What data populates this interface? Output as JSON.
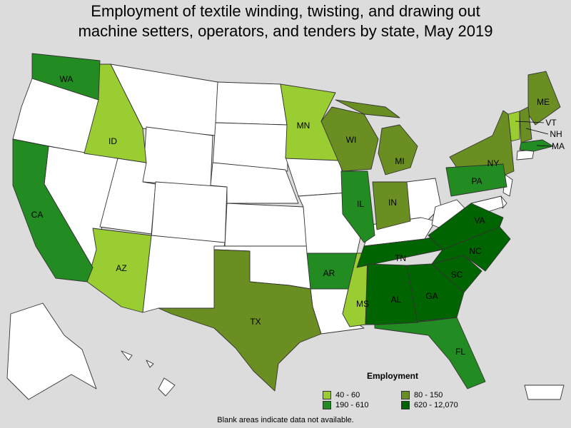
{
  "title": {
    "line1": "Employment of textile winding, twisting, and drawing out",
    "line2": "machine setters, operators, and tenders by state, May 2019"
  },
  "legend": {
    "title": "Employment",
    "items": [
      {
        "label": "40 - 60",
        "color": "#9acd32"
      },
      {
        "label": "80 - 150",
        "color": "#6b8e23"
      },
      {
        "label": "190 - 610",
        "color": "#228b22"
      },
      {
        "label": "620 - 12,070",
        "color": "#006400"
      }
    ]
  },
  "footnote": "Blank areas indicate data not available.",
  "colors": {
    "no_data": "#ffffff",
    "background": "#dcdcdc",
    "tier_1": "#9acd32",
    "tier_2": "#6b8e23",
    "tier_3": "#228b22",
    "tier_4": "#006400"
  },
  "states": {
    "WA": {
      "label": "WA",
      "range": "190 - 610"
    },
    "OR": {
      "label": "",
      "range": "no data"
    },
    "CA": {
      "label": "CA",
      "range": "190 - 610"
    },
    "ID": {
      "label": "ID",
      "range": "40 - 60"
    },
    "NV": {
      "label": "",
      "range": "no data"
    },
    "AZ": {
      "label": "AZ",
      "range": "40 - 60"
    },
    "MN": {
      "label": "MN",
      "range": "40 - 60"
    },
    "WI": {
      "label": "WI",
      "range": "80 - 150"
    },
    "MI": {
      "label": "MI",
      "range": "80 - 150"
    },
    "IL": {
      "label": "IL",
      "range": "190 - 610"
    },
    "IN": {
      "label": "IN",
      "range": "80 - 150"
    },
    "TX": {
      "label": "TX",
      "range": "80 - 150"
    },
    "AR": {
      "label": "AR",
      "range": "190 - 610"
    },
    "MS": {
      "label": "MS",
      "range": "40 - 60"
    },
    "AL": {
      "label": "AL",
      "range": "620 - 12,070"
    },
    "TN": {
      "label": "TN",
      "range": "620 - 12,070"
    },
    "GA": {
      "label": "GA",
      "range": "620 - 12,070"
    },
    "FL": {
      "label": "FL",
      "range": "190 - 610"
    },
    "SC": {
      "label": "SC",
      "range": "620 - 12,070"
    },
    "NC": {
      "label": "NC",
      "range": "620 - 12,070"
    },
    "VA": {
      "label": "VA",
      "range": "620 - 12,070"
    },
    "PA": {
      "label": "PA",
      "range": "190 - 610"
    },
    "NY": {
      "label": "NY",
      "range": "80 - 150"
    },
    "ME": {
      "label": "ME",
      "range": "80 - 150"
    },
    "VT": {
      "label": "VT",
      "range": "40 - 60"
    },
    "NH": {
      "label": "NH",
      "range": "80 - 150"
    },
    "MA": {
      "label": "MA",
      "range": "190 - 610"
    }
  }
}
